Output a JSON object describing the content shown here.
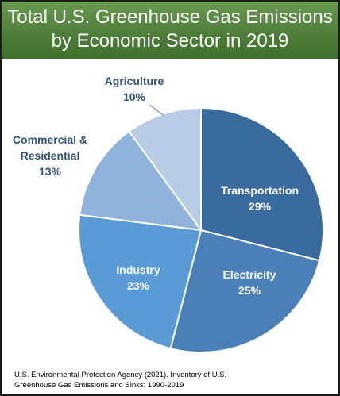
{
  "title": {
    "line1": "Total U.S. Greenhouse Gas Emissions",
    "line2": "by Economic Sector in 2019"
  },
  "source": {
    "line1": "U.S. Environmental Protection Agency (2021). Inventory of U.S.",
    "line2": "Greenhouse Gas Emissions and Sinks: 1990-2019"
  },
  "colors": {
    "header": "#4f7f3a",
    "transportation": "#3a6b9e",
    "electricity": "#4a7fb8",
    "industry": "#5b9bd5",
    "commercial_residential": "#8fb3db",
    "agriculture": "#b9cde9",
    "outside_label": "#2f5275"
  },
  "chart_data": {
    "type": "pie",
    "title": "Total U.S. Greenhouse Gas Emissions by Economic Sector in 2019",
    "start_angle_deg": 0,
    "direction": "clockwise",
    "slices": [
      {
        "name": "Transportation",
        "value": 29,
        "label_name": "Transportation",
        "label_value": "29%",
        "color": "#3a6b9e",
        "label_position": "inside"
      },
      {
        "name": "Electricity",
        "value": 25,
        "label_name": "Electricity",
        "label_value": "25%",
        "color": "#4a7fb8",
        "label_position": "inside"
      },
      {
        "name": "Industry",
        "value": 23,
        "label_name": "Industry",
        "label_value": "23%",
        "color": "#5b9bd5",
        "label_position": "inside"
      },
      {
        "name": "Commercial & Residential",
        "value": 13,
        "label_name_lines": [
          "Commercial &",
          "Residential"
        ],
        "label_value": "13%",
        "color": "#8fb3db",
        "label_position": "outside"
      },
      {
        "name": "Agriculture",
        "value": 10,
        "label_name": "Agriculture",
        "label_value": "10%",
        "color": "#b9cde9",
        "label_position": "outside"
      }
    ]
  }
}
